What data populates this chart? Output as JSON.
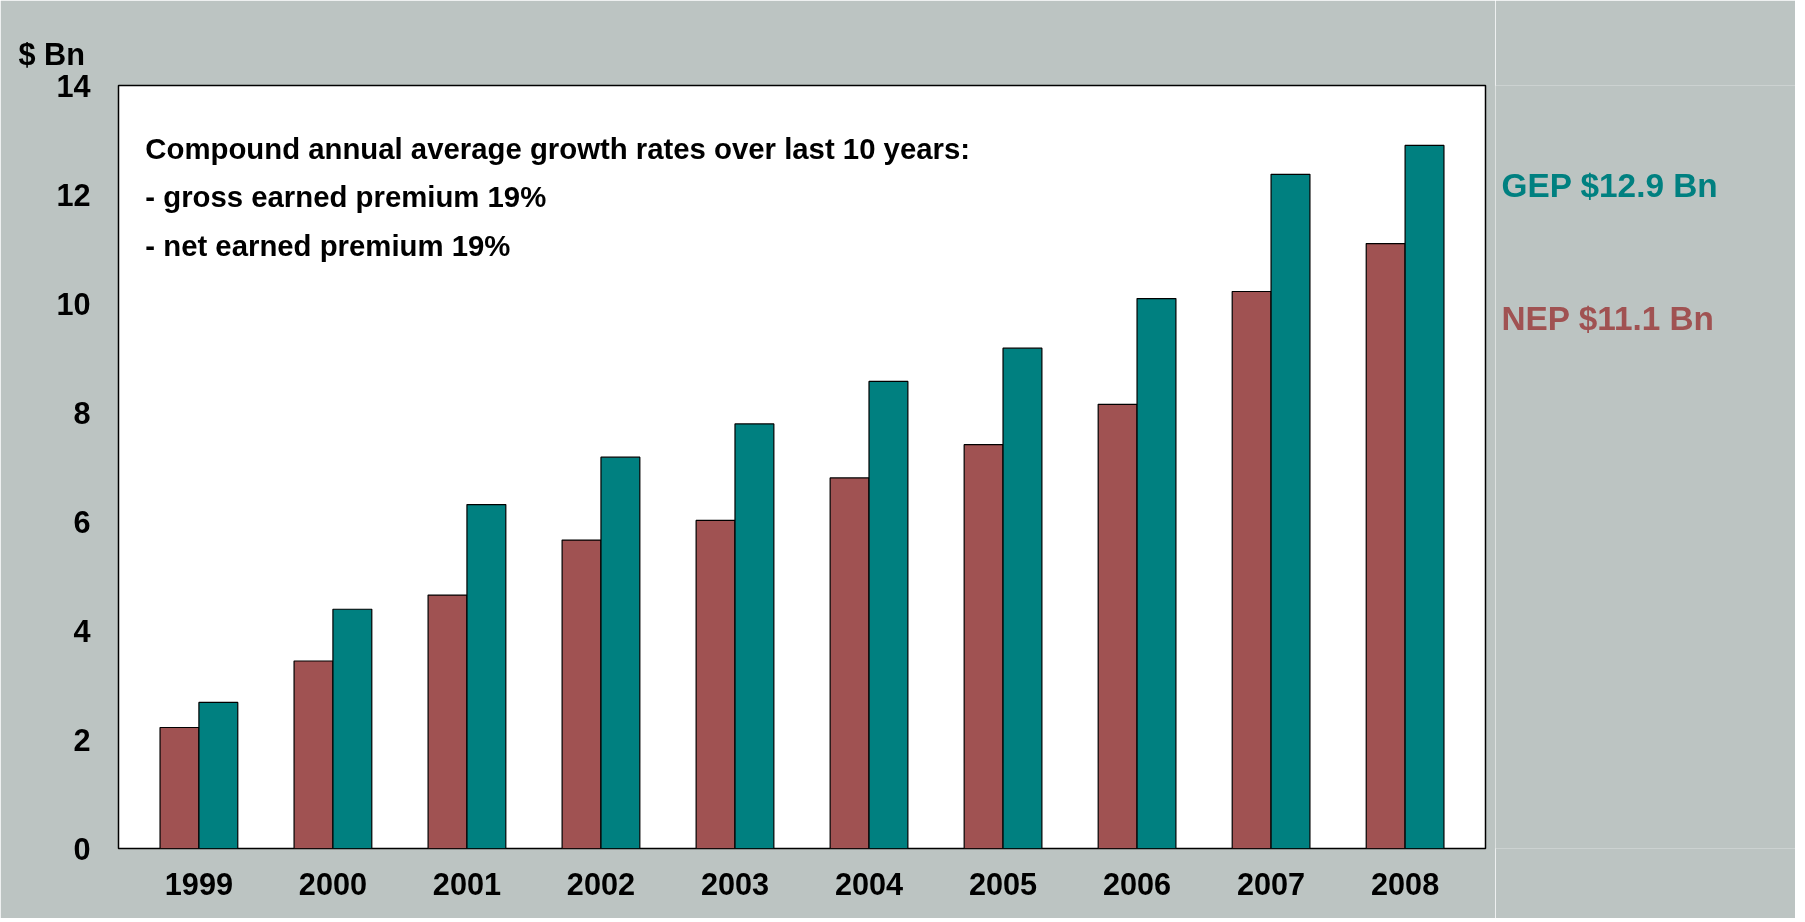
{
  "chart_data": {
    "type": "bar",
    "ylabel": "$ Bn",
    "categories": [
      "1999",
      "2000",
      "2001",
      "2002",
      "2003",
      "2004",
      "2005",
      "2006",
      "2007",
      "2008"
    ],
    "series": [
      {
        "name": "NEP $11.1 Bn",
        "color": "#a05252",
        "values": [
          2.22,
          3.44,
          4.65,
          5.66,
          6.02,
          6.8,
          7.41,
          8.15,
          10.22,
          11.1
        ]
      },
      {
        "name": "GEP $12.9 Bn",
        "color": "#008080",
        "values": [
          2.68,
          4.39,
          6.31,
          7.18,
          7.79,
          8.57,
          9.18,
          10.09,
          12.37,
          12.9
        ]
      }
    ],
    "ylim": [
      0,
      14
    ],
    "yticks": [
      0,
      2,
      4,
      6,
      8,
      10,
      12,
      14
    ],
    "grid": false,
    "annotations": [
      "Compound annual average growth rates over last 10 years:",
      "- gross earned premium 19%",
      "- net earned premium 19%"
    ]
  }
}
